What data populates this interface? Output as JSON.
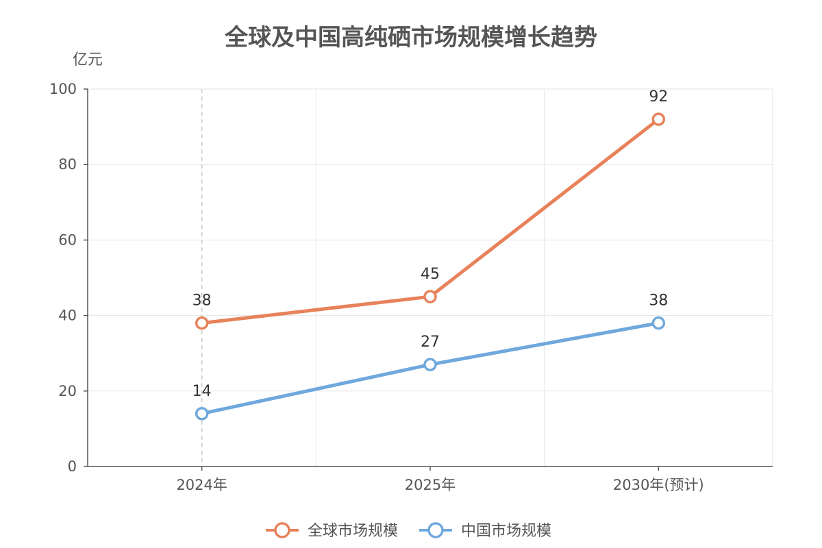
{
  "chart_data": {
    "type": "line",
    "title": "全球及中国高纯硒市场规模增长趋势",
    "ylabel": "亿元",
    "xlabel": "",
    "categories": [
      "2024年",
      "2025年",
      "2030年(预计)"
    ],
    "ylim": [
      0,
      100
    ],
    "yticks": [
      0,
      20,
      40,
      60,
      80,
      100
    ],
    "grid": true,
    "legend_position": "bottom",
    "series": [
      {
        "name": "全球市场规模",
        "values": [
          38,
          45,
          92
        ],
        "color": "#e8825a"
      },
      {
        "name": "中国市场规模",
        "values": [
          14,
          27,
          38
        ],
        "color": "#6fa8dc"
      }
    ]
  }
}
